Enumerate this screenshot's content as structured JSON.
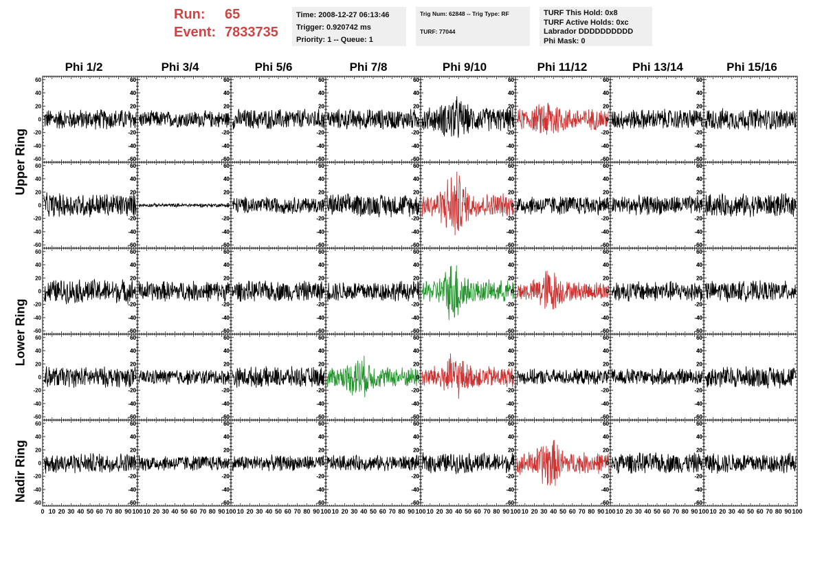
{
  "header": {
    "run_label": "Run:",
    "run_value": "65",
    "event_label": "Event:",
    "event_value": "7833735",
    "time": "Time: 2008-12-27 06:13:46",
    "trigger": "Trigger: 0.920742 ms",
    "priority": "Priority: 1 -- Queue: 1",
    "trig_num": "Trig Num: 62848 -- Trig Type: RF",
    "turf": "TURF: 77044",
    "turf_this_hold": "TURF This Hold: 0x8",
    "turf_active_holds": "TURF Active Holds: 0xc",
    "labrador": "Labrador DDDDDDDDDD",
    "phi_mask": "Phi Mask: 0"
  },
  "columns": [
    "Phi 1/2",
    "Phi 3/4",
    "Phi 5/6",
    "Phi 7/8",
    "Phi 9/10",
    "Phi 11/12",
    "Phi 13/14",
    "Phi 15/16"
  ],
  "ring_labels": [
    {
      "label": "Upper Ring"
    },
    {
      "label": "Lower Ring"
    },
    {
      "label": "Nadir Ring"
    }
  ],
  "colors": {
    "trace": "#000000",
    "triggered_red": "#cc3333",
    "triggered_green": "#22922a",
    "run_text": "#cc4444",
    "info_bg": "#efefef"
  },
  "chart_data": {
    "type": "line",
    "xlim": [
      0,
      100
    ],
    "ylim": [
      -65,
      65
    ],
    "x_ticks": [
      0,
      10,
      20,
      30,
      40,
      50,
      60,
      70,
      80,
      90,
      100
    ],
    "y_ticks": [
      -60,
      -40,
      -20,
      0,
      20,
      40,
      60
    ],
    "rows": 5,
    "cols": 8,
    "panels": [
      {
        "row": 0,
        "col": 0,
        "color": "black",
        "amp": 17,
        "burst": 0
      },
      {
        "row": 0,
        "col": 1,
        "color": "black",
        "amp": 14,
        "burst": 0
      },
      {
        "row": 0,
        "col": 2,
        "color": "black",
        "amp": 17,
        "burst": 0
      },
      {
        "row": 0,
        "col": 3,
        "color": "black",
        "amp": 17,
        "burst": 0
      },
      {
        "row": 0,
        "col": 4,
        "color": "black",
        "amp": 20,
        "burst": 1
      },
      {
        "row": 0,
        "col": 5,
        "color": "red",
        "amp": 18,
        "burst": 1
      },
      {
        "row": 0,
        "col": 6,
        "color": "black",
        "amp": 17,
        "burst": 0
      },
      {
        "row": 0,
        "col": 7,
        "color": "black",
        "amp": 18,
        "burst": 0
      },
      {
        "row": 1,
        "col": 0,
        "color": "black",
        "amp": 20,
        "burst": 0
      },
      {
        "row": 1,
        "col": 1,
        "color": "black",
        "amp": 3,
        "burst": 0
      },
      {
        "row": 1,
        "col": 2,
        "color": "black",
        "amp": 14,
        "burst": 0
      },
      {
        "row": 1,
        "col": 3,
        "color": "black",
        "amp": 19,
        "burst": 0
      },
      {
        "row": 1,
        "col": 4,
        "color": "red",
        "amp": 20,
        "burst": 2
      },
      {
        "row": 1,
        "col": 5,
        "color": "black",
        "amp": 16,
        "burst": 0
      },
      {
        "row": 1,
        "col": 6,
        "color": "black",
        "amp": 16,
        "burst": 0
      },
      {
        "row": 1,
        "col": 7,
        "color": "black",
        "amp": 19,
        "burst": 0
      },
      {
        "row": 2,
        "col": 0,
        "color": "black",
        "amp": 20,
        "burst": 0
      },
      {
        "row": 2,
        "col": 1,
        "color": "black",
        "amp": 17,
        "burst": 0
      },
      {
        "row": 2,
        "col": 2,
        "color": "black",
        "amp": 17,
        "burst": 0
      },
      {
        "row": 2,
        "col": 3,
        "color": "black",
        "amp": 17,
        "burst": 0
      },
      {
        "row": 2,
        "col": 4,
        "color": "green",
        "amp": 18,
        "burst": 2
      },
      {
        "row": 2,
        "col": 5,
        "color": "red",
        "amp": 16,
        "burst": 1.5
      },
      {
        "row": 2,
        "col": 6,
        "color": "black",
        "amp": 17,
        "burst": 0
      },
      {
        "row": 2,
        "col": 7,
        "color": "black",
        "amp": 17,
        "burst": 0
      },
      {
        "row": 3,
        "col": 0,
        "color": "black",
        "amp": 17,
        "burst": 0
      },
      {
        "row": 3,
        "col": 1,
        "color": "black",
        "amp": 13,
        "burst": 0
      },
      {
        "row": 3,
        "col": 2,
        "color": "black",
        "amp": 17,
        "burst": 0
      },
      {
        "row": 3,
        "col": 3,
        "color": "green",
        "amp": 17,
        "burst": 1.2
      },
      {
        "row": 3,
        "col": 4,
        "color": "red",
        "amp": 18,
        "burst": 1.2
      },
      {
        "row": 3,
        "col": 5,
        "color": "black",
        "amp": 13,
        "burst": 0
      },
      {
        "row": 3,
        "col": 6,
        "color": "black",
        "amp": 14,
        "burst": 0
      },
      {
        "row": 3,
        "col": 7,
        "color": "black",
        "amp": 18,
        "burst": 0
      },
      {
        "row": 4,
        "col": 0,
        "color": "black",
        "amp": 17,
        "burst": 0
      },
      {
        "row": 4,
        "col": 1,
        "color": "black",
        "amp": 13,
        "burst": 0
      },
      {
        "row": 4,
        "col": 2,
        "color": "black",
        "amp": 13,
        "burst": 0
      },
      {
        "row": 4,
        "col": 3,
        "color": "black",
        "amp": 13,
        "burst": 0
      },
      {
        "row": 4,
        "col": 4,
        "color": "black",
        "amp": 17,
        "burst": 0
      },
      {
        "row": 4,
        "col": 5,
        "color": "red",
        "amp": 18,
        "burst": 1.5
      },
      {
        "row": 4,
        "col": 6,
        "color": "black",
        "amp": 17,
        "burst": 0
      },
      {
        "row": 4,
        "col": 7,
        "color": "black",
        "amp": 17,
        "burst": 0
      }
    ]
  }
}
